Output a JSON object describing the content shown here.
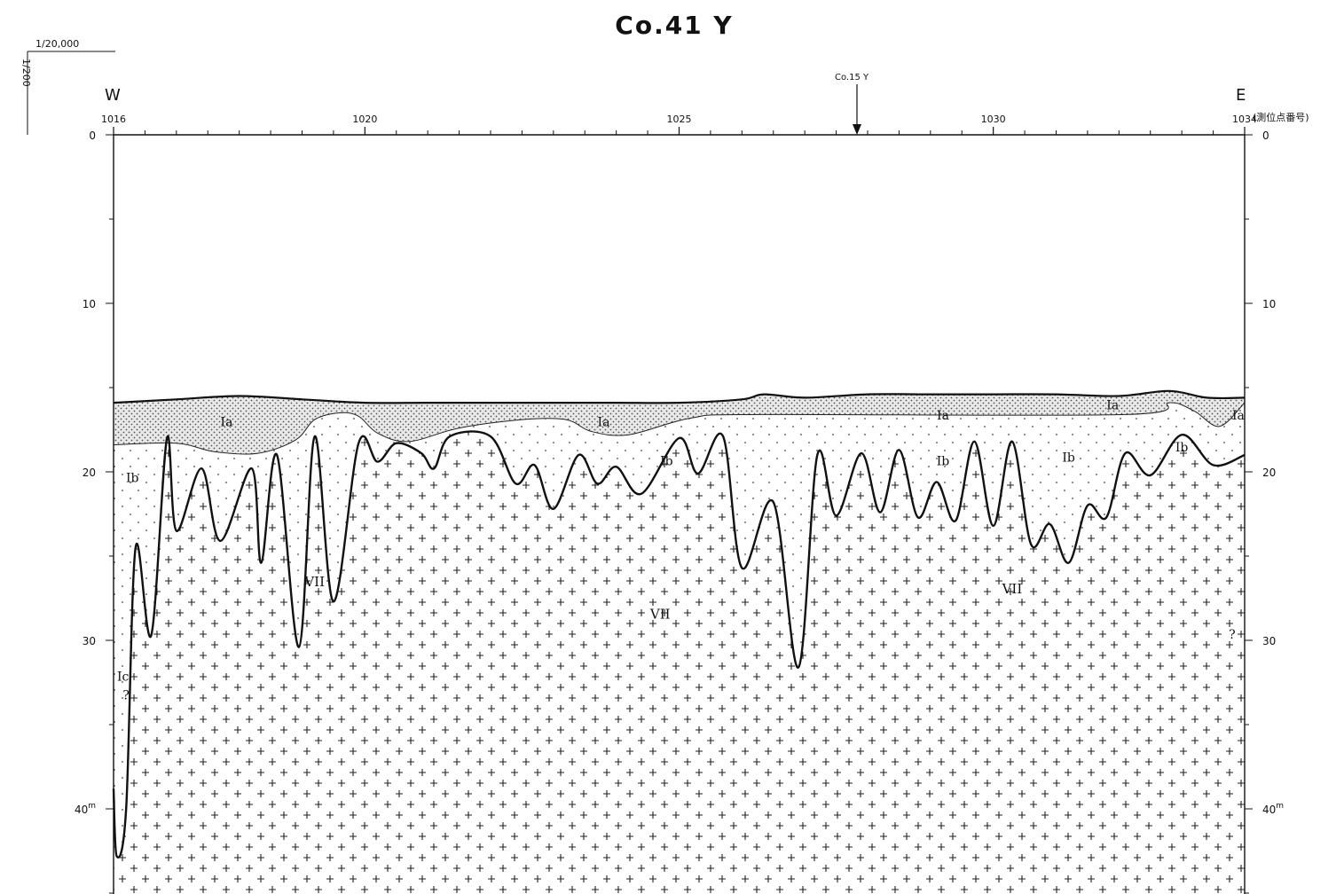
{
  "title": "Co.41 Y",
  "scale": {
    "horizontal": "1/20,000",
    "vertical": "1/200"
  },
  "orientation": {
    "west": "W",
    "east": "E"
  },
  "crossing_marker": "Co.15 Y",
  "station_axis": {
    "label": "(測位点番号)",
    "start_label": "1016",
    "end_label": "1034",
    "labels": [
      {
        "station": 1016,
        "text": "1016"
      },
      {
        "station": 1020,
        "text": "1020"
      },
      {
        "station": 1025,
        "text": "1025"
      },
      {
        "station": 1030,
        "text": "1030"
      },
      {
        "station": 1034,
        "text": "1034"
      }
    ],
    "minor_ticks": [
      1016.5,
      1017,
      1017.5,
      1018,
      1018.5,
      1019,
      1019.5,
      1020.5,
      1021,
      1021.5,
      1022,
      1022.5,
      1023,
      1023.5,
      1024,
      1024.5,
      1025.5,
      1026,
      1026.5,
      1027,
      1027.5,
      1028,
      1028.5,
      1029,
      1029.5,
      1030.5,
      1031,
      1031.5,
      1032,
      1032.5,
      1033,
      1033.5
    ]
  },
  "depth_axis": {
    "unit_suffix": "m",
    "range": [
      0,
      45
    ],
    "labels_left": [
      {
        "depth": 0,
        "text": "0"
      },
      {
        "depth": 10,
        "text": "10"
      },
      {
        "depth": 20,
        "text": "20"
      },
      {
        "depth": 30,
        "text": "30"
      },
      {
        "depth": 40,
        "text": "40"
      }
    ],
    "labels_right": [
      {
        "depth": 0,
        "text": "0"
      },
      {
        "depth": 10,
        "text": "10"
      },
      {
        "depth": 20,
        "text": "20"
      },
      {
        "depth": 30,
        "text": "30"
      },
      {
        "depth": 40,
        "text": "40"
      }
    ]
  },
  "layers": [
    {
      "id": "Ia",
      "label": "Ia"
    },
    {
      "id": "Ib",
      "label": "Ib"
    },
    {
      "id": "Ic",
      "label": "Ic"
    },
    {
      "id": "VII",
      "label": "VII"
    }
  ],
  "layer_labels": [
    {
      "text": "Ia",
      "station": 1017.8,
      "depth": 17.3
    },
    {
      "text": "Ia",
      "station": 1023.8,
      "depth": 17.3
    },
    {
      "text": "Ia",
      "station": 1029.2,
      "depth": 16.9
    },
    {
      "text": "Ia",
      "station": 1031.9,
      "depth": 16.3
    },
    {
      "text": "Ia",
      "station": 1033.9,
      "depth": 16.9
    },
    {
      "text": "Ib",
      "station": 1016.3,
      "depth": 20.6
    },
    {
      "text": "Ib",
      "station": 1024.8,
      "depth": 19.6
    },
    {
      "text": "Ib",
      "station": 1029.2,
      "depth": 19.6
    },
    {
      "text": "Ib",
      "station": 1031.2,
      "depth": 19.4
    },
    {
      "text": "Ib",
      "station": 1033.0,
      "depth": 18.8
    },
    {
      "text": "Ic",
      "station": 1016.15,
      "depth": 32.4
    },
    {
      "text": "?",
      "station": 1016.2,
      "depth": 33.5
    },
    {
      "text": "?",
      "station": 1033.8,
      "depth": 29.9
    },
    {
      "text": "VII",
      "station": 1019.2,
      "depth": 26.8
    },
    {
      "text": "VII",
      "station": 1024.7,
      "depth": 28.7
    },
    {
      "text": "VII",
      "station": 1030.3,
      "depth": 27.2
    }
  ],
  "profiles": {
    "seafloor": [
      [
        1016,
        15.9
      ],
      [
        1017,
        15.7
      ],
      [
        1018,
        15.5
      ],
      [
        1019,
        15.7
      ],
      [
        1020,
        15.9
      ],
      [
        1021,
        15.9
      ],
      [
        1022,
        15.9
      ],
      [
        1023,
        15.9
      ],
      [
        1024,
        15.9
      ],
      [
        1025,
        15.9
      ],
      [
        1026,
        15.7
      ],
      [
        1026.35,
        15.4
      ],
      [
        1027,
        15.6
      ],
      [
        1028,
        15.4
      ],
      [
        1029,
        15.4
      ],
      [
        1030,
        15.4
      ],
      [
        1031,
        15.4
      ],
      [
        1032,
        15.5
      ],
      [
        1032.8,
        15.2
      ],
      [
        1033.4,
        15.6
      ],
      [
        1034,
        15.6
      ]
    ],
    "ia_base": [
      [
        1016,
        18.4
      ],
      [
        1017,
        18.3
      ],
      [
        1017.6,
        18.8
      ],
      [
        1018.3,
        18.9
      ],
      [
        1018.9,
        18.1
      ],
      [
        1019.2,
        16.9
      ],
      [
        1019.6,
        16.5
      ],
      [
        1019.9,
        16.7
      ],
      [
        1020.2,
        17.7
      ],
      [
        1020.7,
        18.2
      ],
      [
        1021.5,
        17.4
      ],
      [
        1022.5,
        16.9
      ],
      [
        1023.2,
        16.9
      ],
      [
        1023.6,
        17.6
      ],
      [
        1024.2,
        17.8
      ],
      [
        1025.2,
        16.8
      ],
      [
        1026.3,
        16.6
      ],
      [
        1032.1,
        16.6
      ],
      [
        1032.8,
        15.9
      ],
      [
        1033.2,
        16.4
      ],
      [
        1033.6,
        17.3
      ],
      [
        1034,
        15.9
      ]
    ],
    "bedrock": [
      [
        1016,
        38.8
      ],
      [
        1016.05,
        42.8
      ],
      [
        1016.2,
        40
      ],
      [
        1016.35,
        24.5
      ],
      [
        1016.6,
        29.7
      ],
      [
        1016.85,
        18
      ],
      [
        1017.0,
        23.5
      ],
      [
        1017.4,
        19.8
      ],
      [
        1017.7,
        24.1
      ],
      [
        1018.2,
        19.8
      ],
      [
        1018.35,
        25.4
      ],
      [
        1018.6,
        19
      ],
      [
        1018.95,
        30.4
      ],
      [
        1019.2,
        17.9
      ],
      [
        1019.5,
        27.7
      ],
      [
        1019.9,
        18.3
      ],
      [
        1020.2,
        19.4
      ],
      [
        1020.5,
        18.3
      ],
      [
        1020.9,
        18.9
      ],
      [
        1021.1,
        19.8
      ],
      [
        1021.35,
        17.9
      ],
      [
        1022.0,
        17.9
      ],
      [
        1022.4,
        20.7
      ],
      [
        1022.7,
        19.6
      ],
      [
        1023.0,
        22.2
      ],
      [
        1023.4,
        19
      ],
      [
        1023.7,
        20.7
      ],
      [
        1024.0,
        19.7
      ],
      [
        1024.4,
        21.3
      ],
      [
        1025.0,
        18
      ],
      [
        1025.3,
        20.1
      ],
      [
        1025.7,
        17.9
      ],
      [
        1026.0,
        25.7
      ],
      [
        1026.5,
        21.8
      ],
      [
        1026.9,
        31.6
      ],
      [
        1027.2,
        19
      ],
      [
        1027.5,
        22.6
      ],
      [
        1027.9,
        18.9
      ],
      [
        1028.2,
        22.4
      ],
      [
        1028.5,
        18.7
      ],
      [
        1028.8,
        22.7
      ],
      [
        1029.1,
        20.6
      ],
      [
        1029.4,
        22.9
      ],
      [
        1029.7,
        18.2
      ],
      [
        1030.0,
        23.2
      ],
      [
        1030.3,
        18.2
      ],
      [
        1030.6,
        24.3
      ],
      [
        1030.9,
        23.1
      ],
      [
        1031.2,
        25.4
      ],
      [
        1031.5,
        22
      ],
      [
        1031.8,
        22.7
      ],
      [
        1032.1,
        18.9
      ],
      [
        1032.5,
        20.2
      ],
      [
        1033.0,
        17.8
      ],
      [
        1033.5,
        19.6
      ],
      [
        1034,
        19
      ]
    ]
  }
}
